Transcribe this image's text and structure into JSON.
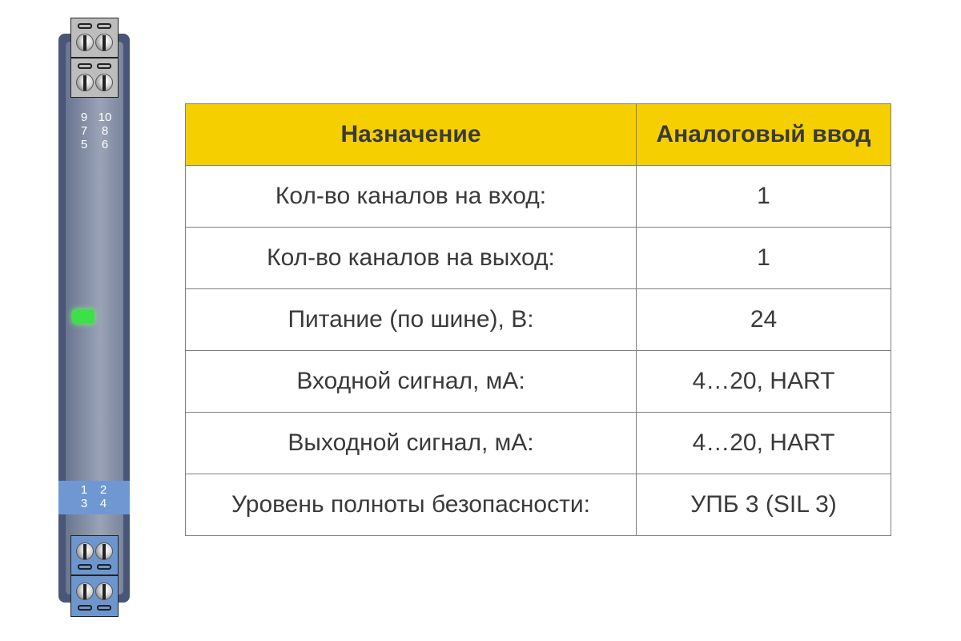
{
  "device": {
    "top_terminal_labels": [
      [
        "9",
        "10"
      ],
      [
        "7",
        "8"
      ],
      [
        "5",
        "6"
      ]
    ],
    "bottom_terminal_labels": [
      [
        "1",
        "2"
      ],
      [
        "3",
        "4"
      ]
    ],
    "led_color": "#3ee04a",
    "band_color": "#6f98d2"
  },
  "table": {
    "header": [
      "Назначение",
      "Аналоговый ввод"
    ],
    "header_color": "#f5cf00",
    "rows": [
      [
        "Кол-во каналов на вход:",
        "1"
      ],
      [
        "Кол-во каналов на выход:",
        "1"
      ],
      [
        "Питание (по шине), В:",
        "24"
      ],
      [
        "Входной сигнал, мА:",
        "4…20, HART"
      ],
      [
        "Выходной сигнал, мА:",
        "4…20, HART"
      ],
      [
        "Уровень полноты безопасности:",
        "УПБ 3 (SIL 3)"
      ]
    ]
  }
}
